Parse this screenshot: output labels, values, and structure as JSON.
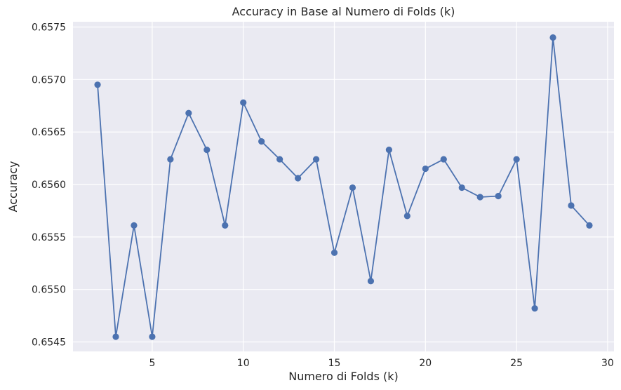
{
  "chart_data": {
    "type": "line",
    "title": "Accuracy in Base al Numero di Folds (k)",
    "xlabel": "Numero di Folds (k)",
    "ylabel": "Accuracy",
    "xlim": [
      0.65,
      30.35
    ],
    "ylim": [
      0.65441,
      0.65755
    ],
    "xticks": [
      5,
      10,
      15,
      20,
      25,
      30
    ],
    "xtick_labels": [
      "5",
      "10",
      "15",
      "20",
      "25",
      "30"
    ],
    "yticks": [
      0.6545,
      0.655,
      0.6555,
      0.656,
      0.6565,
      0.657,
      0.6575
    ],
    "ytick_labels": [
      "0.6545",
      "0.6550",
      "0.6555",
      "0.6560",
      "0.6565",
      "0.6570",
      "0.6575"
    ],
    "grid": true,
    "legend": "none",
    "series": [
      {
        "color": "#4c72b0",
        "marker": "circle",
        "x": [
          2,
          3,
          4,
          5,
          6,
          7,
          8,
          9,
          10,
          11,
          12,
          13,
          14,
          15,
          16,
          17,
          18,
          19,
          20,
          21,
          22,
          23,
          24,
          25,
          26,
          27,
          28,
          29
        ],
        "values": [
          0.65695,
          0.65455,
          0.65561,
          0.65455,
          0.65624,
          0.65668,
          0.65633,
          0.65561,
          0.65678,
          0.65641,
          0.65624,
          0.65606,
          0.65624,
          0.65535,
          0.65597,
          0.65508,
          0.65633,
          0.6557,
          0.65615,
          0.65624,
          0.65597,
          0.65588,
          0.65589,
          0.65624,
          0.65482,
          0.6574,
          0.6558,
          0.65561
        ]
      }
    ]
  },
  "colors": {
    "plot_background": "#eaeaf2",
    "grid": "#ffffff",
    "line": "#4c72b0"
  }
}
